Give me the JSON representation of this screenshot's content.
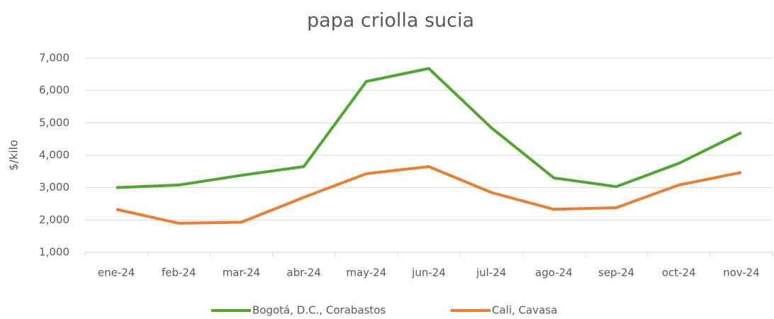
{
  "chart_data": {
    "type": "line",
    "title": "papa criolla sucia",
    "y_label": "$/kilo",
    "categories": [
      "ene-24",
      "feb-24",
      "mar-24",
      "abr-24",
      "may-24",
      "jun-24",
      "jul-24",
      "ago-24",
      "sep-24",
      "oct-24",
      "nov-24"
    ],
    "series": [
      {
        "name": "Bogotá, D.C., Corabastos",
        "color": "#4ea72e",
        "values": [
          3000,
          3080,
          3380,
          3650,
          6280,
          6680,
          4850,
          3300,
          3030,
          3750,
          4700
        ]
      },
      {
        "name": "Cali, Cavasa",
        "color": "#ed7d31",
        "values": [
          2330,
          1900,
          1930,
          2700,
          3430,
          3650,
          2850,
          2330,
          2380,
          3080,
          3470
        ]
      }
    ],
    "ylim": [
      1000,
      7000
    ],
    "yticks": [
      {
        "value": 1000,
        "label": "1,000"
      },
      {
        "value": 2000,
        "label": "2,000"
      },
      {
        "value": 3000,
        "label": "3,000"
      },
      {
        "value": 4000,
        "label": "4,000"
      },
      {
        "value": 5000,
        "label": "5,000"
      },
      {
        "value": 6000,
        "label": "6,000"
      },
      {
        "value": 7000,
        "label": "7,000"
      }
    ],
    "grid": true,
    "legend": "bottom"
  }
}
